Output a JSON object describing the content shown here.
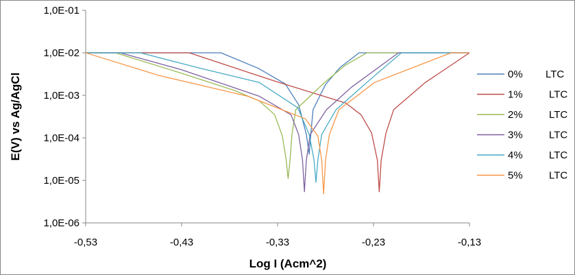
{
  "chart_data": {
    "type": "line",
    "title": "",
    "xlabel": "Log I (Acm^2)",
    "ylabel": "E(V) vs Ag/AgCl",
    "xlim": [
      -0.53,
      -0.13
    ],
    "ylim": [
      1e-06,
      0.1
    ],
    "yscale": "log",
    "xticks": [
      "-0,53",
      "-0,43",
      "-0,33",
      "-0,23",
      "-0,13"
    ],
    "xtick_values": [
      -0.53,
      -0.43,
      -0.33,
      -0.23,
      -0.13
    ],
    "yticks": [
      "1,0E-01",
      "1,0E-02",
      "1,0E-03",
      "1,0E-04",
      "1,0E-05",
      "1,0E-06"
    ],
    "ytick_values": [
      0.1,
      0.01,
      0.001,
      0.0001,
      1e-05,
      1e-06
    ],
    "grid": false,
    "legend_position": "right",
    "series": [
      {
        "name": "0%",
        "suffix": "LTC",
        "color": "#4a7ebb",
        "points": [
          [
            -0.53,
            0.01
          ],
          [
            -0.389,
            0.01
          ],
          [
            -0.35,
            0.0043
          ],
          [
            -0.322,
            0.00186
          ],
          [
            -0.308,
            0.0006
          ],
          [
            -0.3,
            0.00012
          ],
          [
            -0.297,
            4.1e-05
          ],
          [
            -0.295,
            0.00015
          ],
          [
            -0.293,
            0.00046
          ],
          [
            -0.28,
            0.0018
          ],
          [
            -0.265,
            0.0045
          ],
          [
            -0.245,
            0.01
          ],
          [
            -0.13,
            0.01
          ]
        ]
      },
      {
        "name": "1%",
        "suffix": "LTC",
        "color": "#be4b48",
        "points": [
          [
            -0.53,
            0.01
          ],
          [
            -0.422,
            0.01
          ],
          [
            -0.334,
            0.0022
          ],
          [
            -0.259,
            0.00066
          ],
          [
            -0.243,
            0.00035
          ],
          [
            -0.232,
            0.00013
          ],
          [
            -0.226,
            3e-05
          ],
          [
            -0.224,
            5.4e-06
          ],
          [
            -0.222,
            3e-05
          ],
          [
            -0.217,
            0.00013
          ],
          [
            -0.209,
            0.00046
          ],
          [
            -0.176,
            0.002
          ],
          [
            -0.13,
            0.01
          ]
        ]
      },
      {
        "name": "2%",
        "suffix": "LTC",
        "color": "#98b954",
        "points": [
          [
            -0.53,
            0.01
          ],
          [
            -0.499,
            0.01
          ],
          [
            -0.428,
            0.0032
          ],
          [
            -0.375,
            0.0013
          ],
          [
            -0.349,
            0.00074
          ],
          [
            -0.333,
            0.00035
          ],
          [
            -0.325,
            0.00011
          ],
          [
            -0.321,
            3e-05
          ],
          [
            -0.319,
            1.1e-05
          ],
          [
            -0.317,
            3e-05
          ],
          [
            -0.315,
            0.00012
          ],
          [
            -0.311,
            0.00046
          ],
          [
            -0.281,
            0.002
          ],
          [
            -0.26,
            0.005
          ],
          [
            -0.237,
            0.01
          ],
          [
            -0.13,
            0.01
          ]
        ]
      },
      {
        "name": "3%",
        "suffix": "LTC",
        "color": "#7d60a0",
        "points": [
          [
            -0.53,
            0.01
          ],
          [
            -0.494,
            0.01
          ],
          [
            -0.43,
            0.004
          ],
          [
            -0.349,
            0.00095
          ],
          [
            -0.316,
            0.00035
          ],
          [
            -0.308,
            0.00012
          ],
          [
            -0.304,
            3e-05
          ],
          [
            -0.302,
            5.4e-06
          ],
          [
            -0.3,
            3e-05
          ],
          [
            -0.296,
            0.00012
          ],
          [
            -0.279,
            0.00046
          ],
          [
            -0.253,
            0.00155
          ],
          [
            -0.204,
            0.01
          ],
          [
            -0.13,
            0.01
          ]
        ]
      },
      {
        "name": "4%",
        "suffix": "LTC",
        "color": "#46aac5",
        "points": [
          [
            -0.53,
            0.01
          ],
          [
            -0.473,
            0.01
          ],
          [
            -0.41,
            0.0043
          ],
          [
            -0.349,
            0.002
          ],
          [
            -0.309,
            0.00051
          ],
          [
            -0.297,
            0.00012
          ],
          [
            -0.292,
            3e-05
          ],
          [
            -0.29,
            9e-06
          ],
          [
            -0.288,
            3e-05
          ],
          [
            -0.284,
            0.00012
          ],
          [
            -0.269,
            0.00046
          ],
          [
            -0.237,
            0.002
          ],
          [
            -0.201,
            0.01
          ],
          [
            -0.13,
            0.01
          ]
        ]
      },
      {
        "name": "5%",
        "suffix": "LTC",
        "color": "#f79646",
        "points": [
          [
            -0.53,
            0.01
          ],
          [
            -0.454,
            0.00295
          ],
          [
            -0.361,
            0.00095
          ],
          [
            -0.301,
            0.00028
          ],
          [
            -0.288,
            0.00011
          ],
          [
            -0.284,
            3e-05
          ],
          [
            -0.282,
            4.8e-06
          ],
          [
            -0.28,
            3e-05
          ],
          [
            -0.276,
            0.00012
          ],
          [
            -0.266,
            0.00046
          ],
          [
            -0.229,
            0.002
          ],
          [
            -0.179,
            0.0055
          ],
          [
            -0.149,
            0.01
          ],
          [
            -0.13,
            0.01
          ]
        ]
      }
    ]
  }
}
